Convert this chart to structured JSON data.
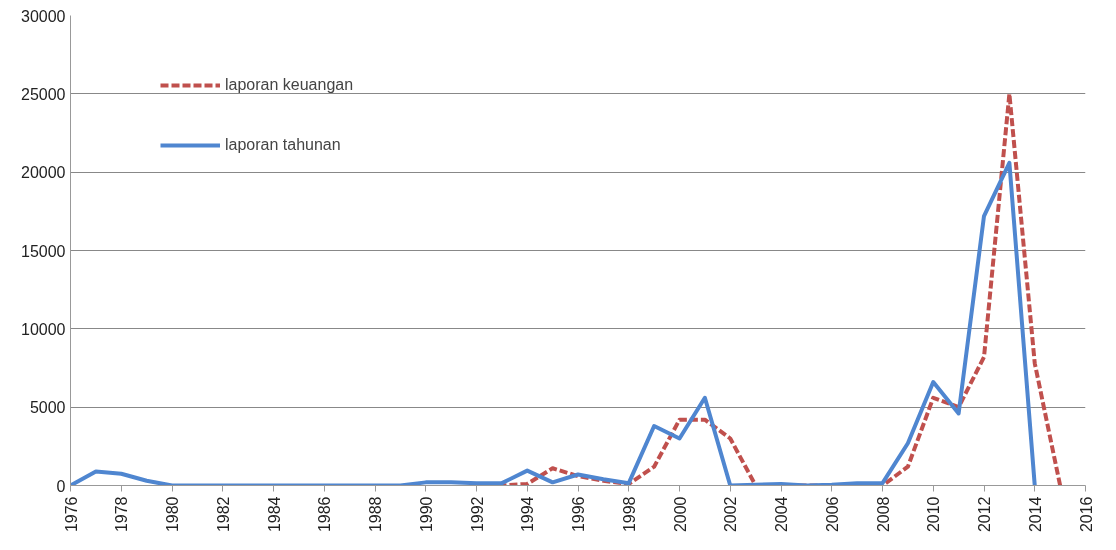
{
  "chart_data": {
    "type": "line",
    "xlim": [
      1976,
      2016
    ],
    "xticks": [
      1976,
      1978,
      1980,
      1982,
      1984,
      1986,
      1988,
      1990,
      1992,
      1994,
      1996,
      1998,
      2000,
      2002,
      2004,
      2006,
      2008,
      2010,
      2012,
      2014,
      2016
    ],
    "ylim": [
      0,
      30000
    ],
    "yticks": [
      0,
      5000,
      10000,
      15000,
      20000,
      25000,
      30000
    ],
    "grid": "y",
    "legend": "top left",
    "series": [
      {
        "name": "laporan keuangan",
        "color": "#c0504d",
        "line_style": "dashed",
        "x": [
          1992,
          1993,
          1994,
          1995,
          1996,
          1997,
          1998,
          1999,
          2000,
          2001,
          2002,
          2003,
          2004,
          2005,
          2006,
          2007,
          2008,
          2009,
          2010,
          2011,
          2012,
          2013,
          2014,
          2015
        ],
        "values": [
          0,
          0,
          100,
          1100,
          600,
          300,
          100,
          1200,
          4200,
          4200,
          3000,
          0,
          0,
          0,
          0,
          0,
          0,
          1200,
          5600,
          5000,
          8200,
          25000,
          7800,
          0
        ]
      },
      {
        "name": "laporan tahunan",
        "color": "#4f86d0",
        "line_style": "solid",
        "x": [
          1976,
          1977,
          1978,
          1979,
          1980,
          1981,
          1982,
          1983,
          1984,
          1985,
          1986,
          1987,
          1988,
          1989,
          1990,
          1991,
          1992,
          1993,
          1994,
          1995,
          1996,
          1997,
          1998,
          1999,
          2000,
          2001,
          2002,
          2003,
          2004,
          2005,
          2006,
          2007,
          2008,
          2009,
          2010,
          2011,
          2012,
          2013,
          2014
        ],
        "values": [
          0,
          900,
          750,
          300,
          0,
          0,
          0,
          0,
          0,
          0,
          0,
          0,
          0,
          0,
          200,
          200,
          150,
          150,
          950,
          200,
          700,
          400,
          150,
          3800,
          3000,
          5600,
          0,
          50,
          100,
          0,
          50,
          150,
          150,
          2700,
          6600,
          4600,
          17200,
          20600,
          0
        ]
      }
    ]
  }
}
